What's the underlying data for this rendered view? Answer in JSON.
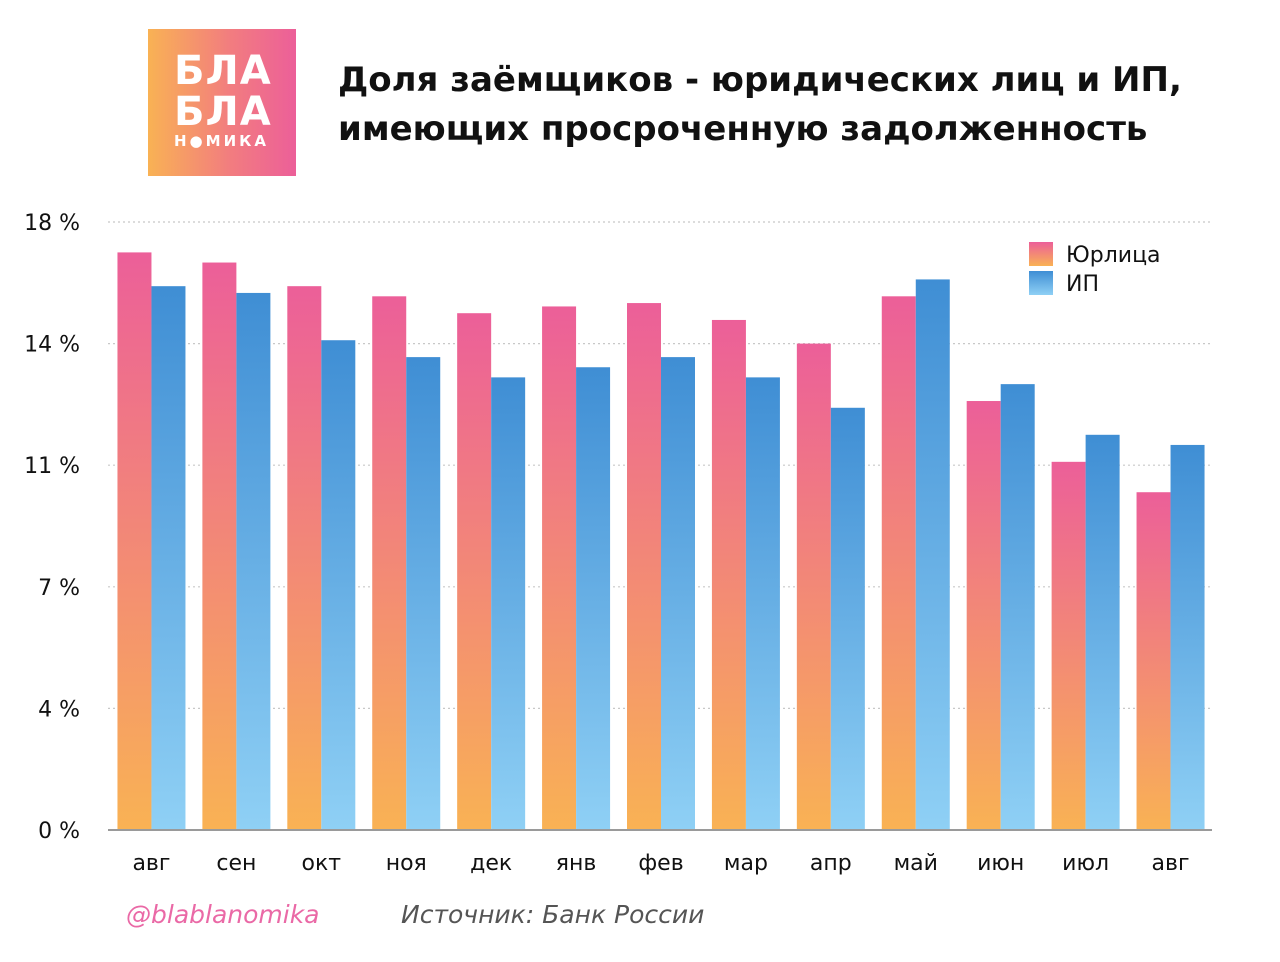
{
  "logo": {
    "line1": "БЛА",
    "line2": "БЛА",
    "line3": "Н●МИКА"
  },
  "title": {
    "line1": "Доля заёмщиков - юридических лиц и ИП,",
    "line2": "имеющих просроченную задолженность"
  },
  "footer": {
    "handle": "@blablanomika",
    "source": "Источник: Банк России"
  },
  "colors": {
    "series1_top": "#ec5f99",
    "series1_bottom": "#f9b254",
    "series2_top": "#3f8ed4",
    "series2_bottom": "#8fd0f5",
    "grid": "#c8c8c8",
    "axis_text": "#111111"
  },
  "chart_data": {
    "type": "bar",
    "title": "Доля заёмщиков - юридических лиц и ИП, имеющих просроченную задолженность",
    "xlabel": "",
    "ylabel": "",
    "categories": [
      "авг",
      "сен",
      "окт",
      "ноя",
      "дек",
      "янв",
      "фев",
      "мар",
      "апр",
      "май",
      "июн",
      "июл",
      "авг"
    ],
    "series": [
      {
        "name": "Юрлица",
        "values": [
          17.1,
          16.8,
          16.1,
          15.8,
          15.3,
          15.5,
          15.6,
          15.1,
          14.4,
          15.8,
          12.7,
          10.9,
          10.0
        ]
      },
      {
        "name": "ИП",
        "values": [
          16.1,
          15.9,
          14.5,
          14.0,
          13.4,
          13.7,
          14.0,
          13.4,
          12.5,
          16.3,
          13.2,
          11.7,
          11.4
        ]
      }
    ],
    "yticks": [
      0,
      3.6,
      7.2,
      10.8,
      14.4,
      18
    ],
    "ytick_labels": [
      "0 %",
      "4 %",
      "7 %",
      "11 %",
      "14 %",
      "18 %"
    ],
    "ylim": [
      0,
      18
    ],
    "grid": true,
    "legend": "top-right"
  }
}
